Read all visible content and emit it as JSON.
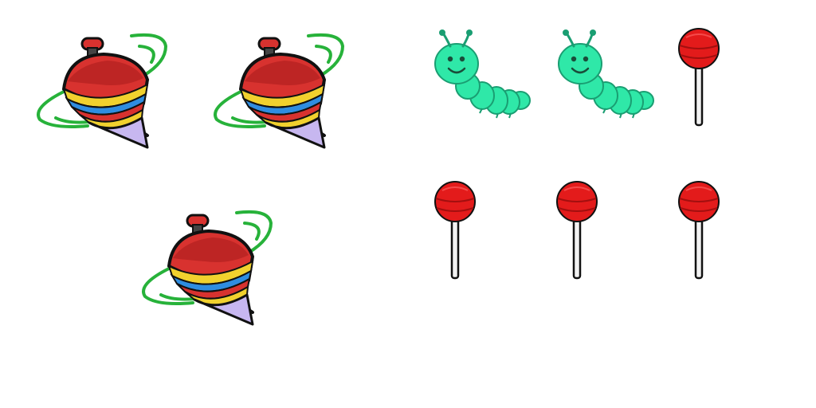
{
  "scene": {
    "background": "#ffffff",
    "groups": [
      {
        "name": "spinning-tops",
        "icon": "spinning-top-icon",
        "count": 3
      },
      {
        "name": "caterpillars",
        "icon": "caterpillar-icon",
        "count": 2
      },
      {
        "name": "lollipops",
        "icon": "lollipop-icon",
        "count": 4
      }
    ],
    "colors": {
      "top_body": "#d8322f",
      "top_dark": "#a81c1c",
      "top_stripe_yellow": "#f1d12e",
      "top_stripe_blue": "#2f8de0",
      "top_tip": "#c7b7f0",
      "motion_lines": "#27b23a",
      "caterpillar_body": "#2fe8a8",
      "caterpillar_outline": "#1a9e72",
      "lollipop_candy": "#e31b1b",
      "lollipop_stick": "#f2f2f2",
      "outline": "#111111"
    }
  }
}
